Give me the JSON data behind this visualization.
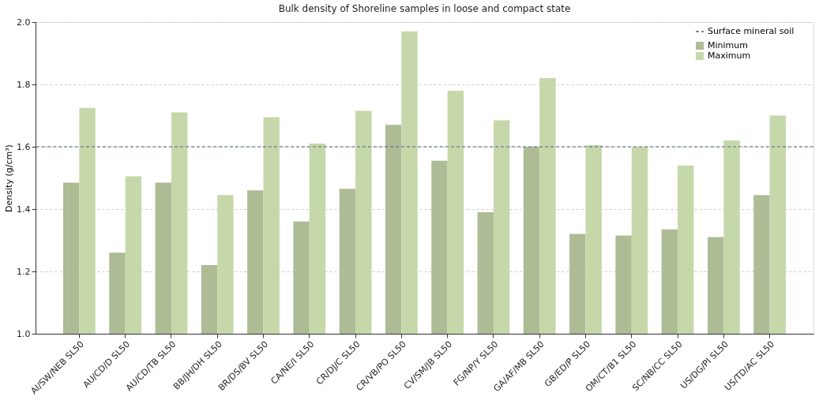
{
  "chart_data": {
    "type": "bar",
    "title": "Bulk density of Shoreline samples in loose and compact state",
    "ylabel": "Density (g/cm³)",
    "categories": [
      "AI/SW/NEB SL50",
      "AU/CD/D SL50",
      "AU/CD/TB SL50",
      "BB/JH/DH SL50",
      "BR/DS/BV SL50",
      "CA/NE/I SL50",
      "CR/DJ/C SL50",
      "CR/VB/PO SL50",
      "CV/SM/JB SL50",
      "FG/NP/Y SL50",
      "GA/AF/MB SL50",
      "GB/ED/P SL50",
      "OM/CT/B1 SL50",
      "SC/NB/CC SL50",
      "US/DG/PI SL50",
      "US/TD/AC SL50"
    ],
    "series": [
      {
        "name": "Minimum",
        "color": "#adbc94",
        "values": [
          1.485,
          1.26,
          1.485,
          1.22,
          1.46,
          1.36,
          1.465,
          1.67,
          1.555,
          1.39,
          1.6,
          1.32,
          1.315,
          1.335,
          1.31,
          1.445
        ]
      },
      {
        "name": "Maximum",
        "color": "#c6d8aa",
        "values": [
          1.725,
          1.505,
          1.71,
          1.445,
          1.695,
          1.61,
          1.715,
          1.97,
          1.78,
          1.685,
          1.82,
          1.605,
          1.6,
          1.54,
          1.62,
          1.7
        ]
      }
    ],
    "ylim": [
      1.0,
      2.0
    ],
    "yticks": [
      {
        "value": 1,
        "label": "1.0"
      },
      1.2,
      1.4,
      1.6,
      1.8,
      {
        "value": 2,
        "label": "2.0"
      }
    ],
    "grid": "y",
    "legend": "top right",
    "ref_lines": [
      {
        "axis": "y",
        "value": 1.6,
        "label": "Surface mineral soil",
        "color": "#4c5f80",
        "line_style": "dashed"
      }
    ]
  }
}
